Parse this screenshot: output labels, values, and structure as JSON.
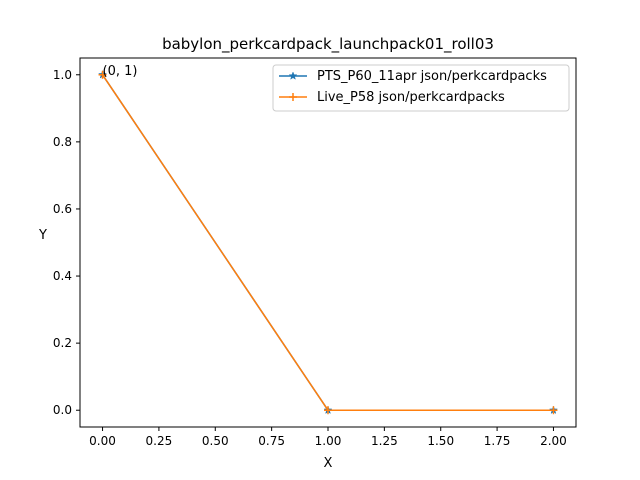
{
  "chart_data": {
    "type": "line",
    "title": "babylon_perkcardpack_launchpack01_roll03",
    "xlabel": "X",
    "ylabel": "Y",
    "xlim": [
      -0.1,
      2.1
    ],
    "ylim": [
      -0.05,
      1.05
    ],
    "x_ticks": [
      0.0,
      0.25,
      0.5,
      0.75,
      1.0,
      1.25,
      1.5,
      1.75,
      2.0
    ],
    "x_tick_labels": [
      "0.00",
      "0.25",
      "0.50",
      "0.75",
      "1.00",
      "1.25",
      "1.50",
      "1.75",
      "2.00"
    ],
    "y_ticks": [
      0.0,
      0.2,
      0.4,
      0.6,
      0.8,
      1.0
    ],
    "y_tick_labels": [
      "0.0",
      "0.2",
      "0.4",
      "0.6",
      "0.8",
      "1.0"
    ],
    "grid": false,
    "legend_position": "top-right",
    "series": [
      {
        "name": "PTS_P60_11apr json/perkcardpacks",
        "color": "#1f77b4",
        "marker": "star",
        "x": [
          0,
          1,
          2
        ],
        "y": [
          1,
          0,
          0
        ]
      },
      {
        "name": "Live_P58 json/perkcardpacks",
        "color": "#ff7f0e",
        "marker": "plus",
        "x": [
          0,
          1,
          2
        ],
        "y": [
          1,
          0,
          0
        ]
      }
    ],
    "annotations": [
      {
        "text": "(0, 1)",
        "x": 0,
        "y": 1
      }
    ]
  }
}
